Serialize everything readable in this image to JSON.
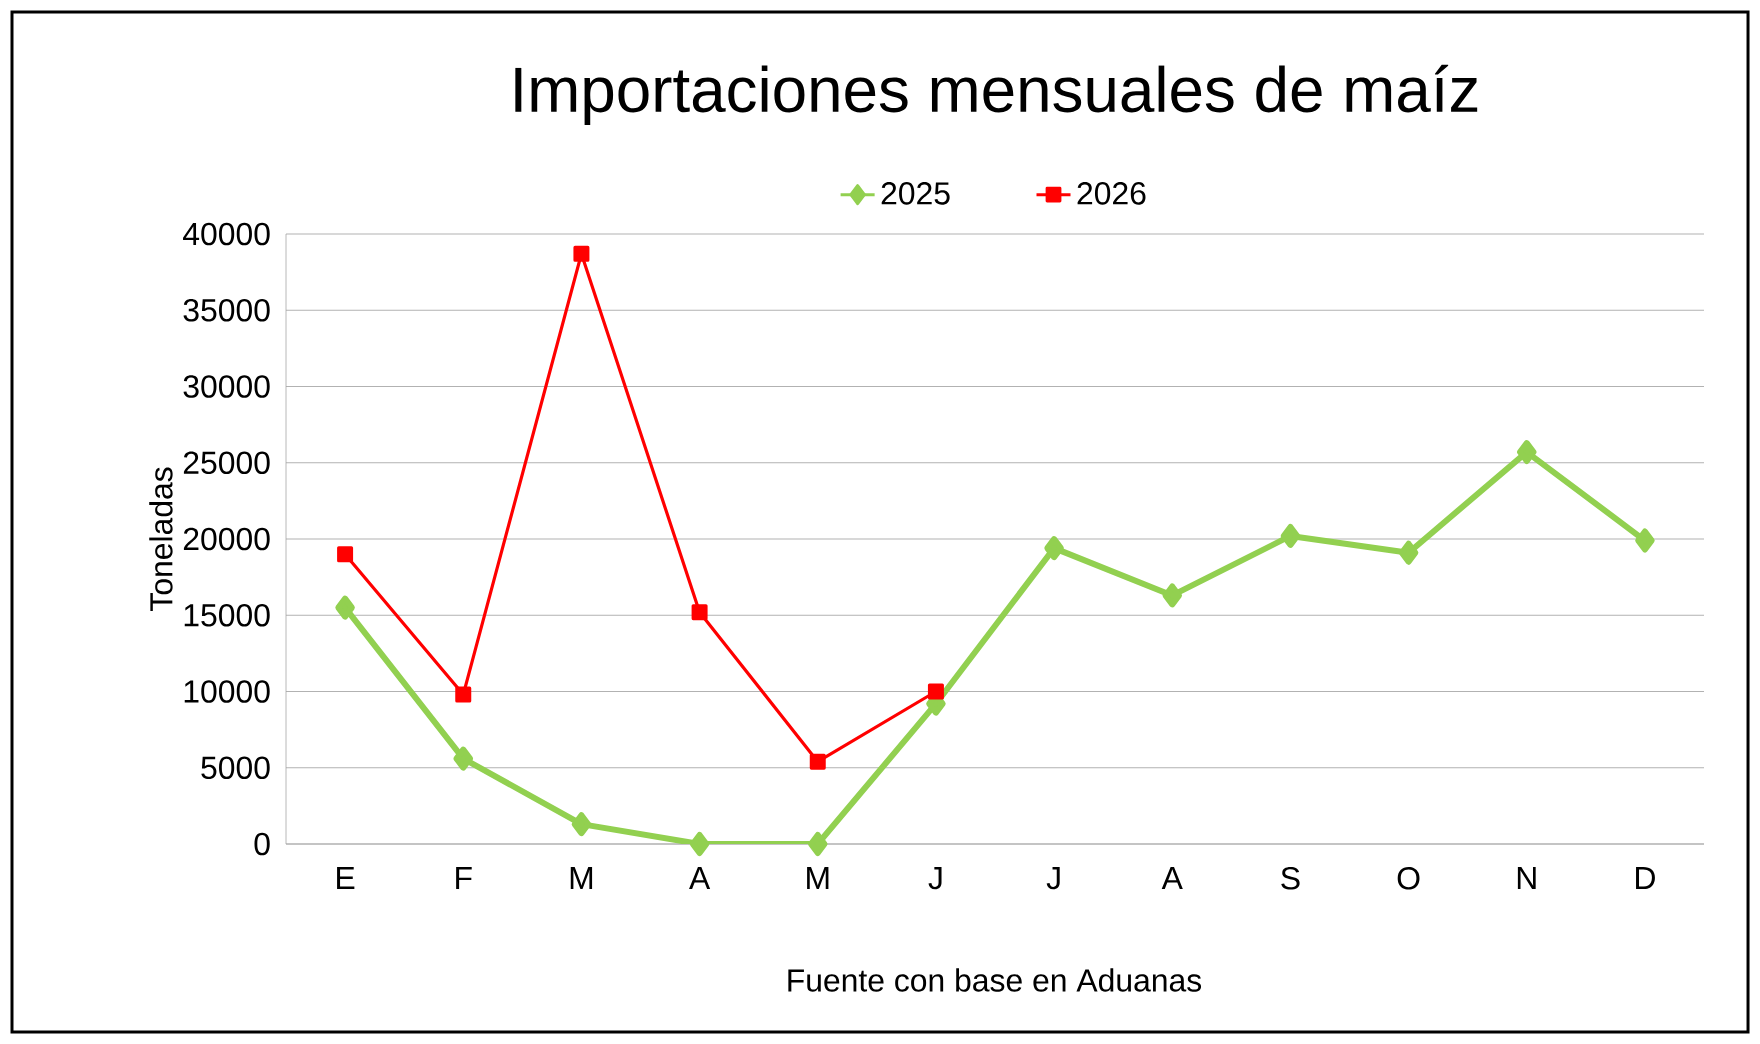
{
  "chart_data": {
    "type": "line",
    "title": "Importaciones mensuales de maíz",
    "ylabel": "Toneladas",
    "annotations": [
      "Fuente con base en Aduanas"
    ],
    "categories": [
      "E",
      "F",
      "M",
      "A",
      "M",
      "J",
      "J",
      "A",
      "S",
      "O",
      "N",
      "D"
    ],
    "series": [
      {
        "name": "2025",
        "color": "#92d050",
        "marker": "diamond",
        "values": [
          15500,
          5600,
          1300,
          0,
          0,
          9200,
          19400,
          16300,
          20200,
          19100,
          25700,
          19900
        ]
      },
      {
        "name": "2026",
        "color": "#ff0000",
        "marker": "square",
        "values": [
          19000,
          9800,
          38700,
          15200,
          5400,
          10000,
          null,
          null,
          null,
          null,
          null,
          null
        ]
      }
    ],
    "ylim": [
      0,
      40000
    ],
    "yticks": [
      0,
      5000,
      10000,
      15000,
      20000,
      25000,
      30000,
      35000,
      40000
    ],
    "grid": "y",
    "legend": "top",
    "line_style": "solid"
  }
}
